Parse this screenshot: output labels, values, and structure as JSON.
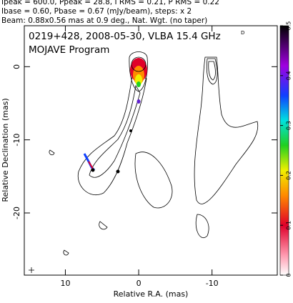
{
  "chart_data": {
    "type": "image",
    "header_lines": [
      "Ipeak = 600.0, Ppeak = 28.8, I RMS = 0.21, P RMS = 0.22",
      "Ibase = 0.60, Pbase = 0.67 (mJy/beam), steps: x 2",
      "Beam: 0.88x0.56 mas at 0.9 deg., Nat. Wgt. (no taper)"
    ],
    "title": "0219+428, 2008-05-30, VLBA 15.4 GHz",
    "title_mark": "D",
    "subtitle": "MOJAVE Program",
    "x_label": "Relative R.A. (mas)",
    "y_label": "Relative Declination (mas)",
    "xlim": [
      15.6,
      -18.9
    ],
    "xticks": [
      10,
      0,
      -10
    ],
    "ylim": [
      -28.5,
      5.6
    ],
    "yticks": [
      0,
      -10,
      -20
    ],
    "colorbar": {
      "lim": [
        0,
        0.5
      ],
      "ticks": [
        0,
        0.1,
        0.2,
        0.3,
        0.4,
        0.5
      ]
    }
  }
}
